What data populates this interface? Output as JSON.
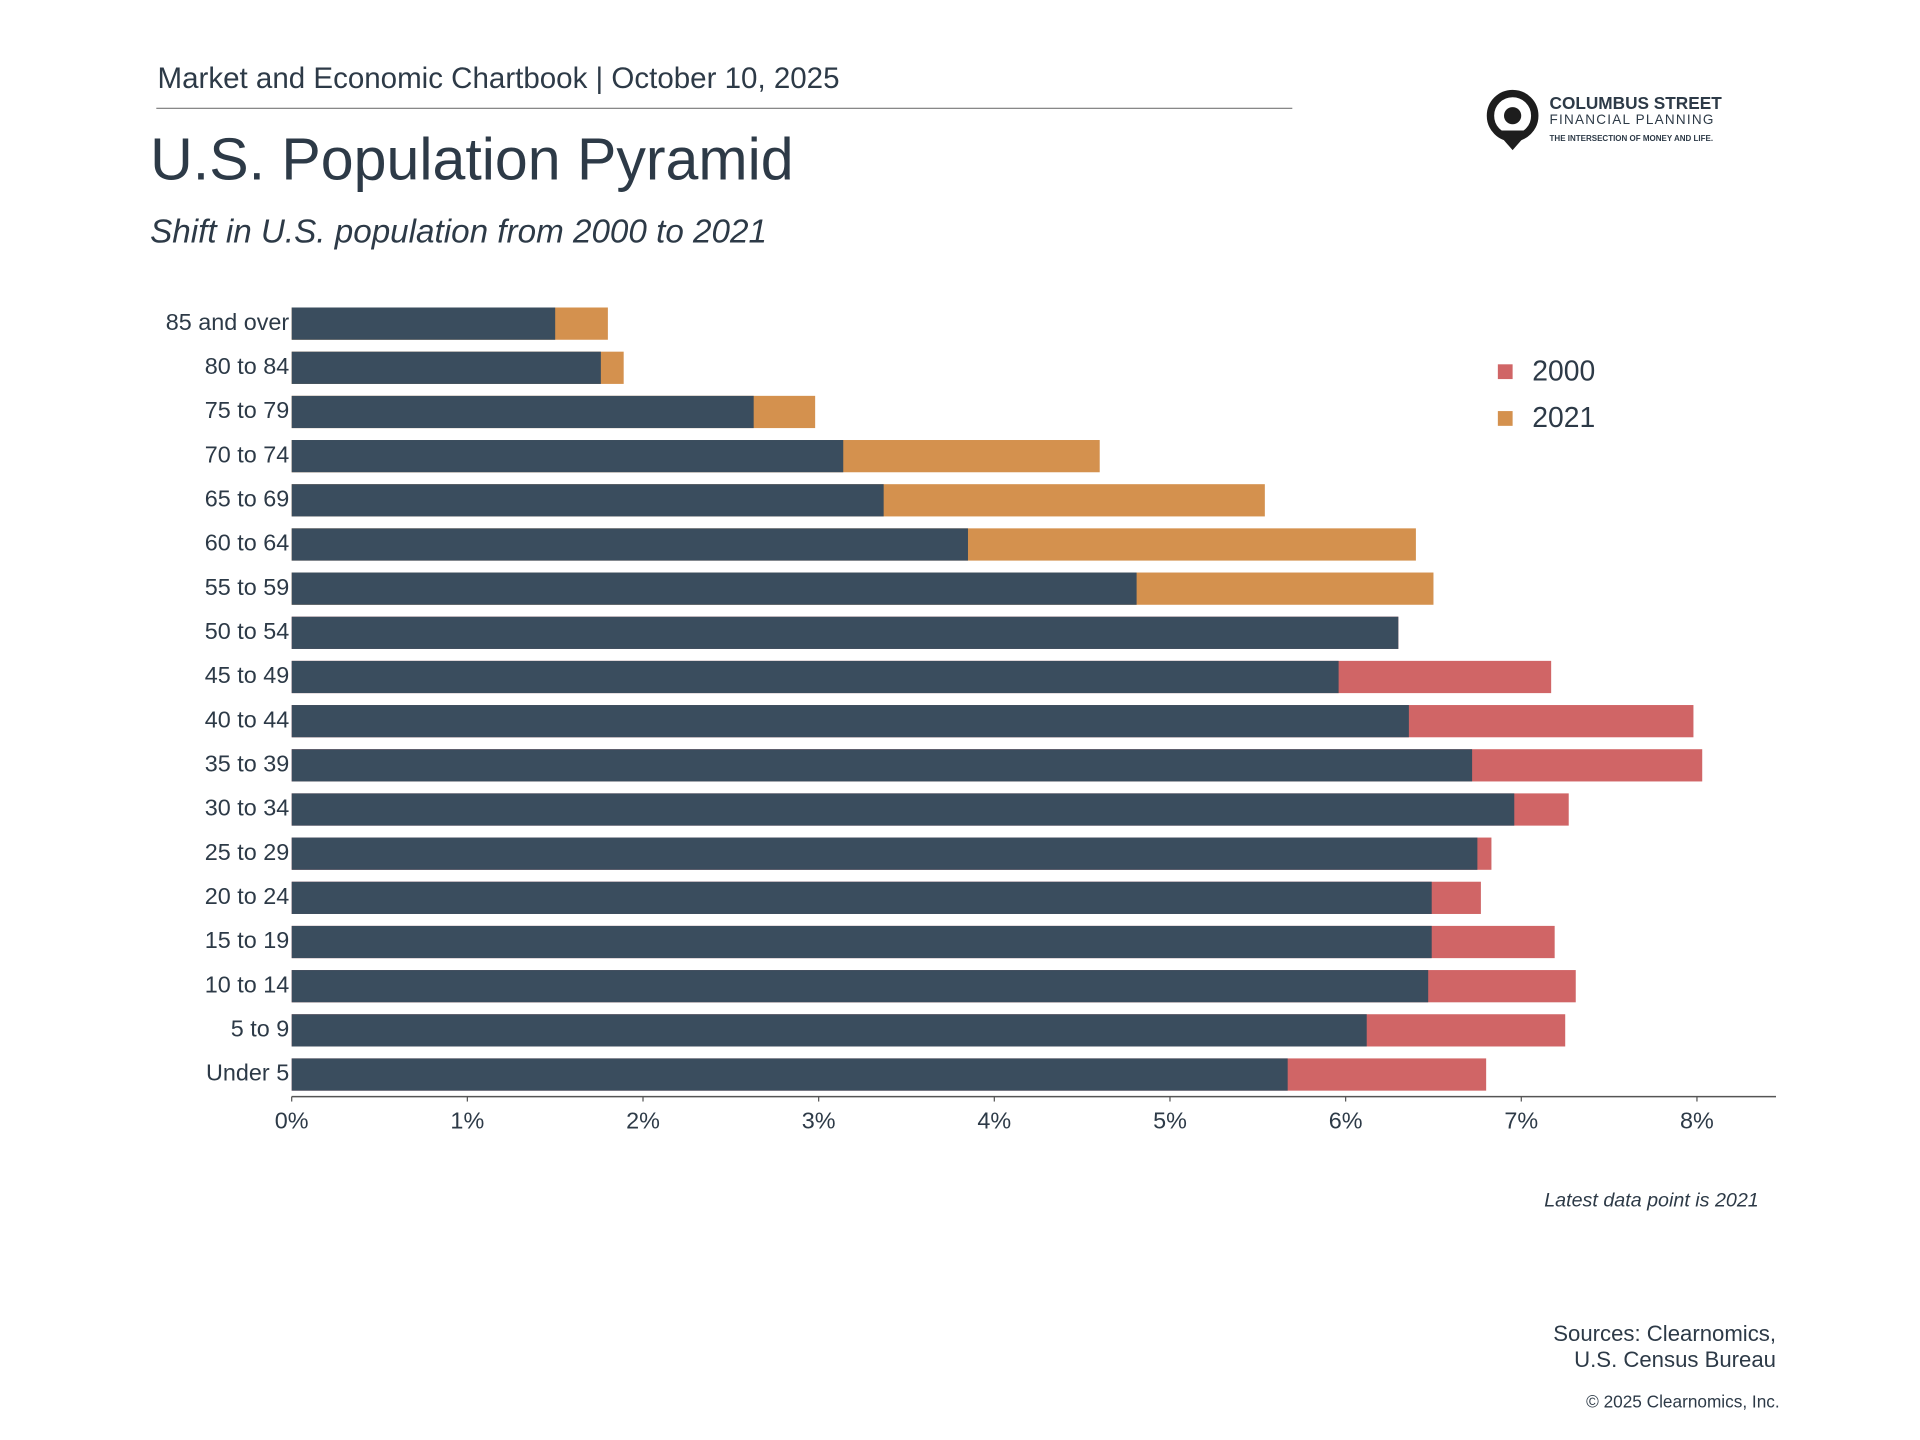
{
  "header": {
    "chartbook": "Market and Economic Chartbook | October 10, 2025"
  },
  "logo": {
    "name": "COLUMBUS STREET",
    "sub": "FINANCIAL PLANNING",
    "tagline": "THE INTERSECTION OF MONEY AND LIFE."
  },
  "chart_data": {
    "type": "overlap-bar",
    "title": "U.S. Population Pyramid",
    "subtitle": "Shift in U.S. population from 2000 to 2021",
    "categories": [
      "85 and over",
      "80 to 84",
      "75 to 79",
      "70 to 74",
      "65 to 69",
      "60 to 64",
      "55 to 59",
      "50 to 54",
      "45 to 49",
      "40 to 44",
      "35 to 39",
      "30 to 34",
      "25 to 29",
      "20 to 24",
      "15 to 19",
      "10 to 14",
      "5 to 9",
      "Under 5"
    ],
    "series": [
      {
        "name": "2000",
        "color": "#d06566",
        "values": [
          1.5,
          1.76,
          2.63,
          3.14,
          3.37,
          3.85,
          4.81,
          6.3,
          7.17,
          7.98,
          8.03,
          7.27,
          6.83,
          6.77,
          7.19,
          7.31,
          7.25,
          6.8
        ]
      },
      {
        "name": "2021",
        "color": "#d4914e",
        "values": [
          1.8,
          1.89,
          2.98,
          4.6,
          5.54,
          6.4,
          6.5,
          6.3,
          5.96,
          6.36,
          6.72,
          6.96,
          6.75,
          6.49,
          6.49,
          6.47,
          6.12,
          5.67
        ]
      }
    ],
    "overlap_color": "#3a4d5e",
    "xlim": [
      0,
      8.45
    ],
    "xticks": [
      {
        "value": 0,
        "label": "0%"
      },
      {
        "value": 1,
        "label": "1%"
      },
      {
        "value": 2,
        "label": "2%"
      },
      {
        "value": 3,
        "label": "3%"
      },
      {
        "value": 4,
        "label": "4%"
      },
      {
        "value": 5,
        "label": "5%"
      },
      {
        "value": 6,
        "label": "6%"
      },
      {
        "value": 7,
        "label": "7%"
      },
      {
        "value": 8,
        "label": "8%"
      }
    ],
    "legend": "upper-right",
    "note": "Latest data point is 2021"
  },
  "sources": [
    "Sources: Clearnomics,",
    "U.S. Census Bureau"
  ],
  "copyright": "© 2025 Clearnomics, Inc."
}
